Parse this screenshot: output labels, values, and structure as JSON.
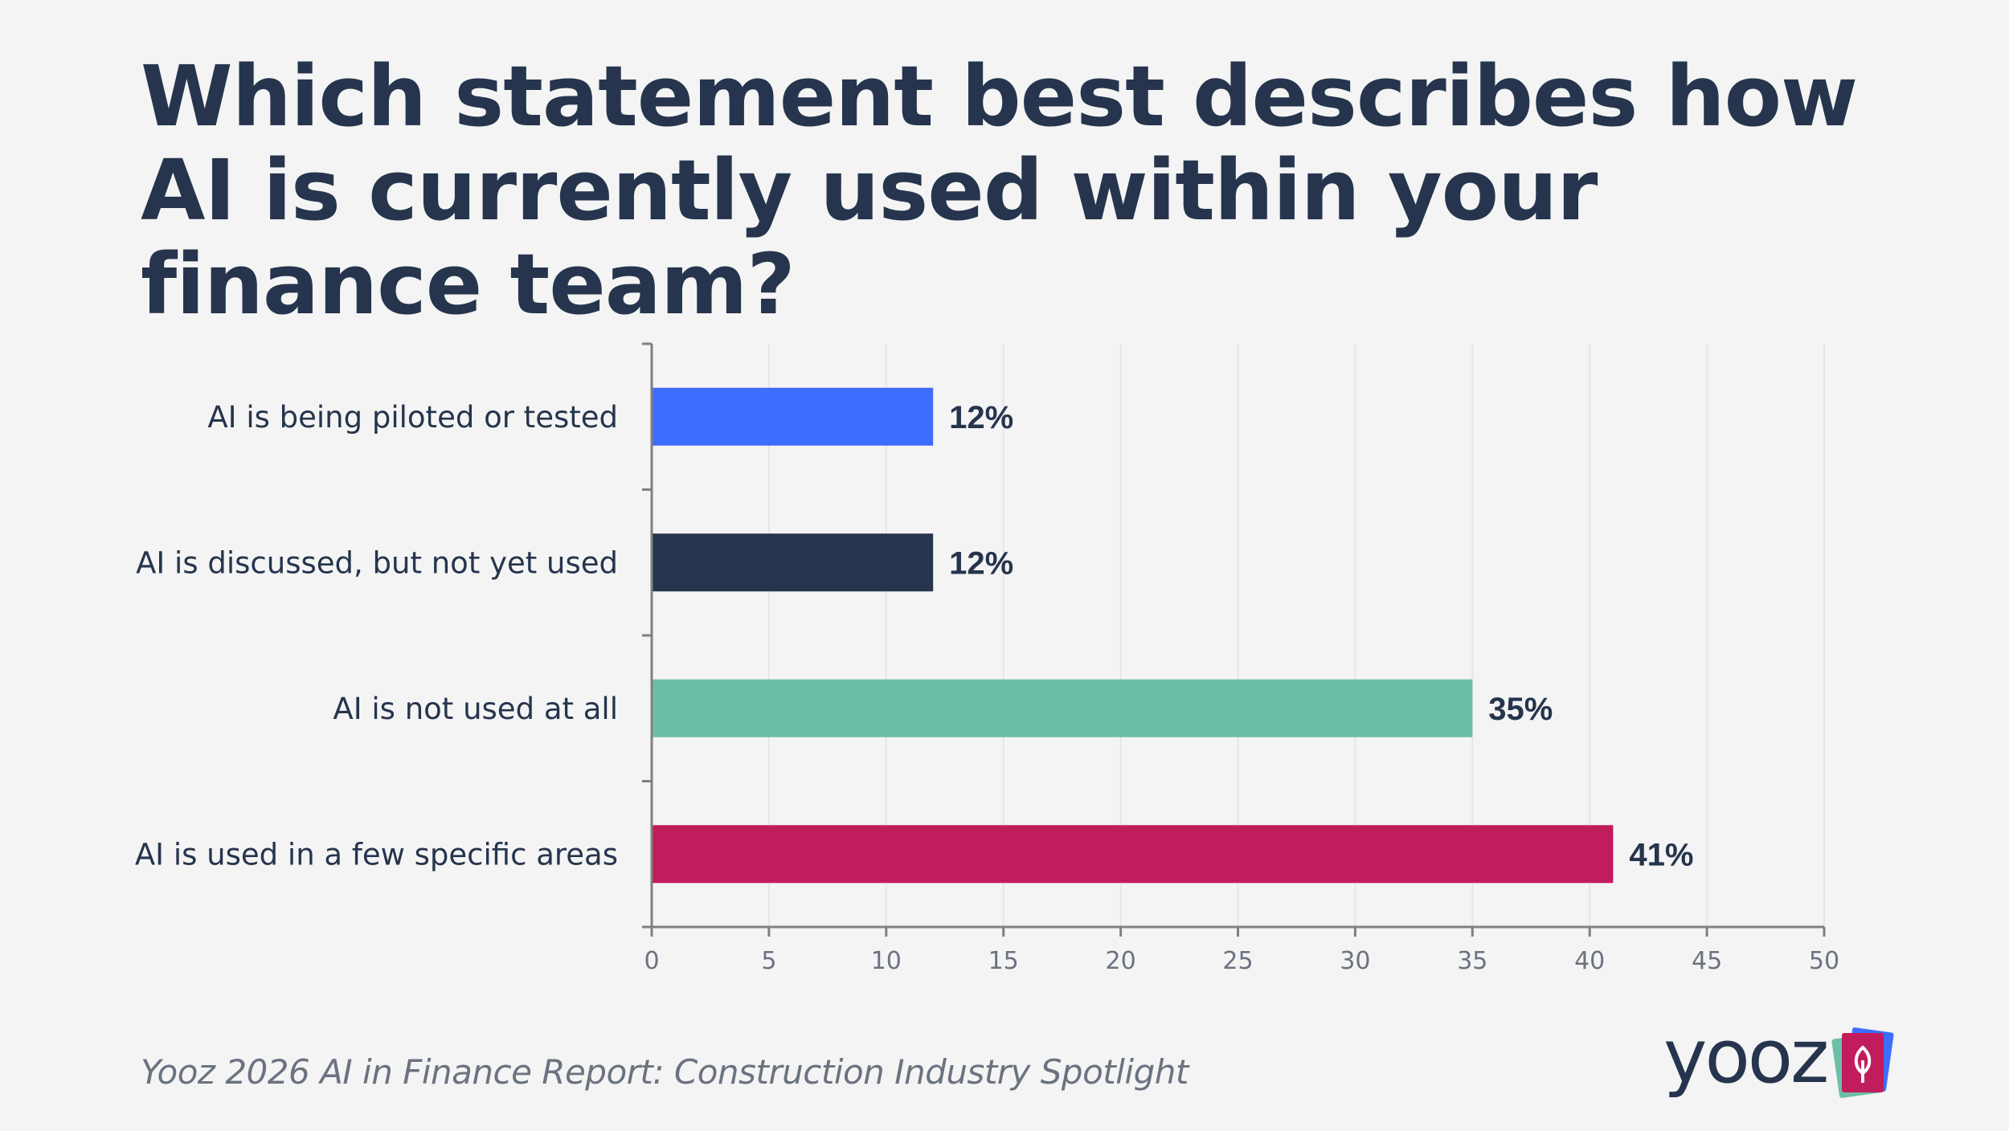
{
  "title": "Which statement best describes how AI is currently used within your finance team?",
  "source": "Yooz 2026 AI in Finance Report: Construction Industry Spotlight",
  "logo": {
    "text": "yooz",
    "icon": "leaf-card-stack-icon"
  },
  "colors": {
    "background": "#f4f4f4",
    "text": "#26354d",
    "axis": "#808080",
    "grid": "#e6e6e6"
  },
  "chart_data": {
    "type": "bar",
    "orientation": "horizontal",
    "title": "Which statement best describes how AI is currently used within your finance team?",
    "xlabel": "",
    "ylabel": "",
    "categories": [
      "AI is being piloted or tested",
      "AI is discussed, but not yet used",
      "AI is not used at all",
      "AI is used in a few specific areas"
    ],
    "values": [
      12,
      12,
      35,
      41
    ],
    "value_labels": [
      "12%",
      "12%",
      "35%",
      "41%"
    ],
    "colors": [
      "#3d6dfd",
      "#26354d",
      "#6cbfa7",
      "#c11c5b"
    ],
    "xlim": [
      0,
      50
    ],
    "xticks": [
      0,
      5,
      10,
      15,
      20,
      25,
      30,
      35,
      40,
      45,
      50
    ],
    "grid": true,
    "legend": "none"
  }
}
